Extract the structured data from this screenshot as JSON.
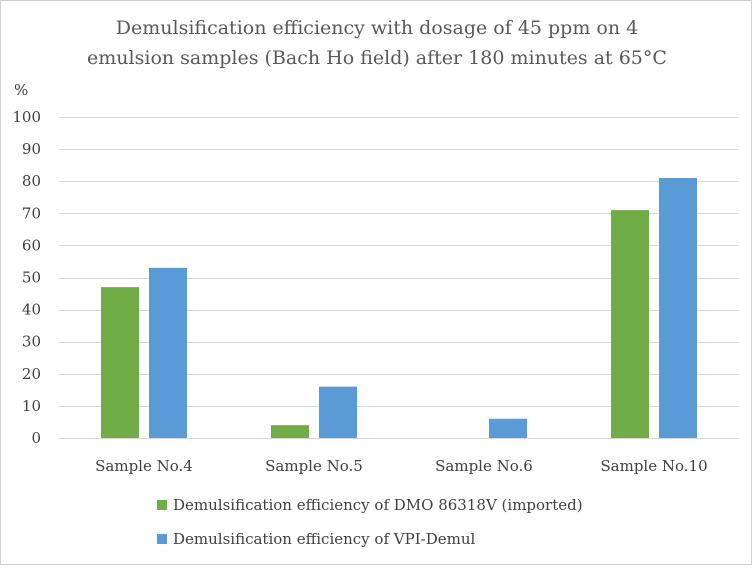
{
  "chart_data": {
    "type": "bar",
    "title": [
      "Demulsification efficiency with dosage of 45 ppm on 4",
      "emulsion samples (Bach Ho field) after 180 minutes at 65°C"
    ],
    "ylabel": "%",
    "xlabel": "",
    "ylim": [
      0,
      100
    ],
    "yticks": [
      0,
      10,
      20,
      30,
      40,
      50,
      60,
      70,
      80,
      90,
      100
    ],
    "categories": [
      "Sample No.4",
      "Sample No.5",
      "Sample No.6",
      "Sample No.10"
    ],
    "series": [
      {
        "name": "Demulsification efficiency of  DMO 86318V (imported)",
        "color": "#70ad47",
        "values": [
          47,
          4,
          0,
          71
        ]
      },
      {
        "name": "Demulsification efficiency of VPI-Demul",
        "color": "#5b9bd5",
        "values": [
          53,
          16,
          6,
          81
        ]
      }
    ],
    "grid": true,
    "legend": "bottom"
  }
}
